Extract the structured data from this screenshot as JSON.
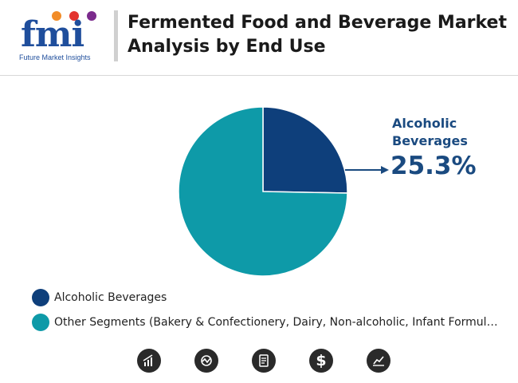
{
  "header": {
    "logo_text": "fmi",
    "logo_tagline": "Future Market Insights",
    "title": "Fermented Food and Beverage Market Analysis by End Use"
  },
  "colors": {
    "alcoholic": "#0e3f7b",
    "other": "#0e9aa8",
    "callout": "#1a4a80"
  },
  "chart_data": {
    "type": "pie",
    "title": "Fermented Food and Beverage Market Analysis by End Use",
    "slices": [
      {
        "label": "Alcoholic Beverages",
        "value": 25.3
      },
      {
        "label": "Other Segments (Bakery & Confectionery, Dairy, Non-alcoholic, Infant Formula, Diet…",
        "value": 74.7
      }
    ],
    "callout": {
      "label": "Alcoholic Beverages",
      "value_text": "25.3%"
    },
    "legend_position": "bottom-left"
  },
  "footer_icons": [
    "bar-chart-icon",
    "analysis-cycle-icon",
    "report-document-icon",
    "dollar-icon",
    "trend-chart-icon"
  ]
}
